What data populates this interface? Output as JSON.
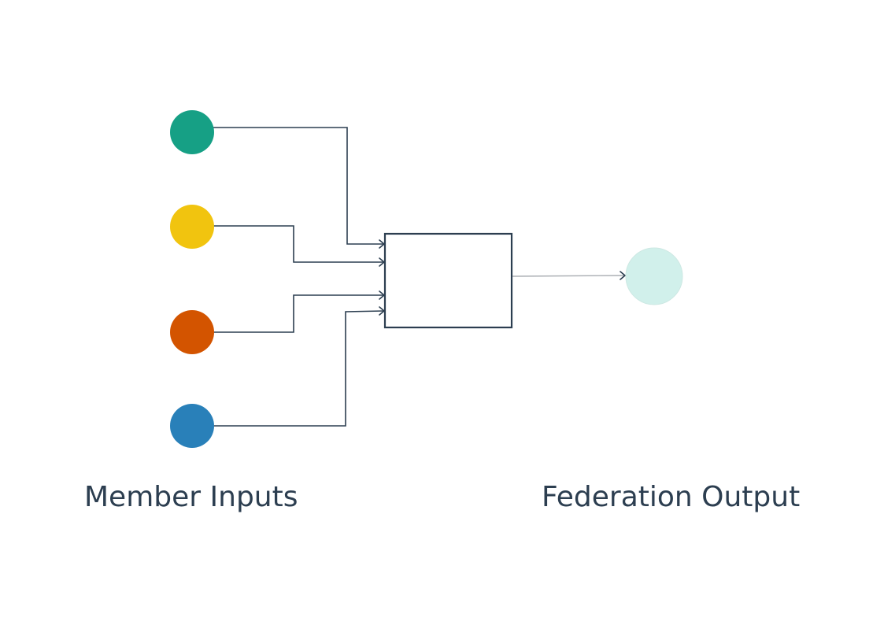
{
  "labels": {
    "left": "Member Inputs",
    "right": "Federation Output"
  },
  "nodes": {
    "inputs": [
      {
        "id": "input-1",
        "color": "#16a085"
      },
      {
        "id": "input-2",
        "color": "#f1c40f"
      },
      {
        "id": "input-3",
        "color": "#d35400"
      },
      {
        "id": "input-4",
        "color": "#2980b9"
      }
    ],
    "output": {
      "id": "output",
      "color": "#d1f0eb"
    }
  },
  "colors": {
    "line": "#2c3e50",
    "output_line": "#a9adb2",
    "box_stroke": "#2c3e50",
    "text": "#2c3e50"
  }
}
